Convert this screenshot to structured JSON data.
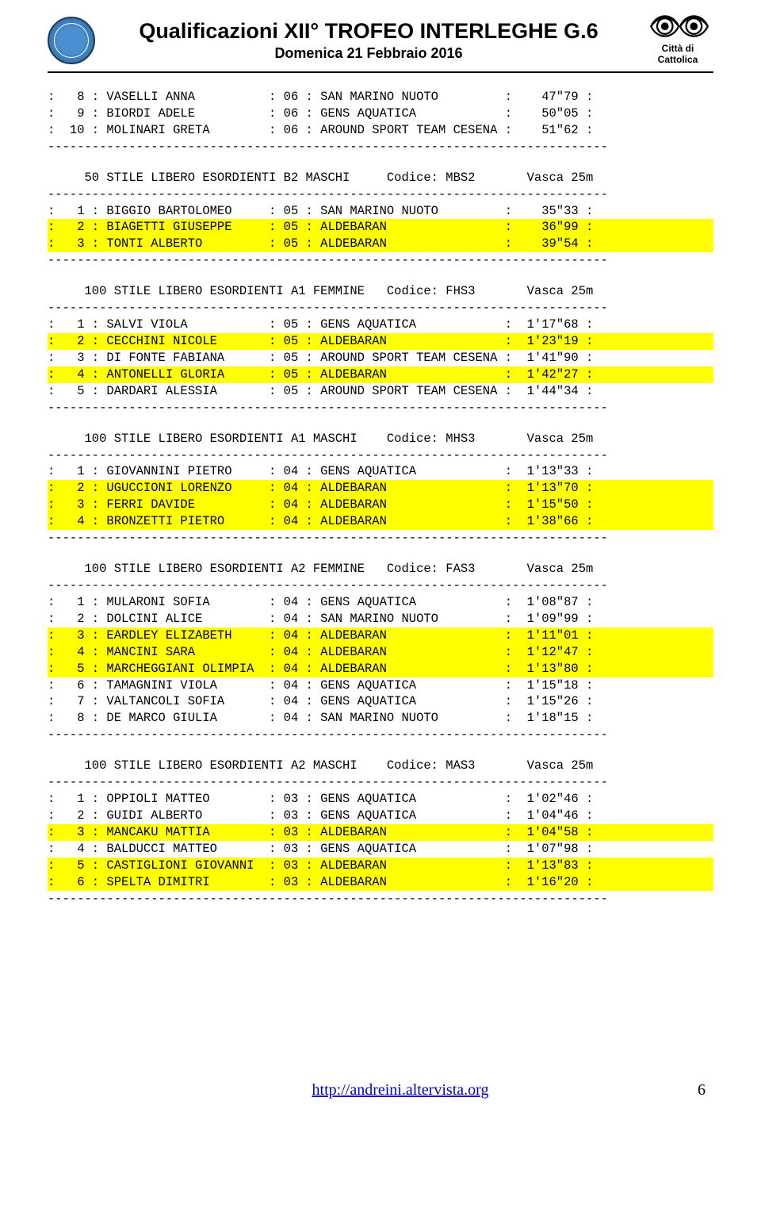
{
  "header": {
    "title_main": "Qualificazioni XII° TROFEO INTERLEGHE G.6",
    "title_sub": "Domenica 21 Febbraio 2016",
    "city_label": "Città di Cattolica"
  },
  "footer": {
    "link_text": "http://andreini.altervista.org",
    "page_num": "6"
  },
  "dashes": "----------------------------------------------------------------------------",
  "events": [
    {
      "header": null,
      "rows": [
        {
          "pos": "  8",
          "name": "VASELLI ANNA         ",
          "yr": "06",
          "team": "SAN MARINO NUOTO         ",
          "time": "   47\"79",
          "hl": false
        },
        {
          "pos": "  9",
          "name": "BIORDI ADELE         ",
          "yr": "06",
          "team": "GENS AQUATICA            ",
          "time": "   50\"05",
          "hl": false
        },
        {
          "pos": " 10",
          "name": "MOLINARI GRETA       ",
          "yr": "06",
          "team": "AROUND SPORT TEAM CESENA ",
          "time": "   51\"62",
          "hl": false
        }
      ]
    },
    {
      "header": "     50 STILE LIBERO ESORDIENTI B2 MASCHI     Codice: MBS2       Vasca 25m",
      "rows": [
        {
          "pos": "  1",
          "name": "BIGGIO BARTOLOMEO    ",
          "yr": "05",
          "team": "SAN MARINO NUOTO         ",
          "time": "   35\"33",
          "hl": false
        },
        {
          "pos": "  2",
          "name": "BIAGETTI GIUSEPPE    ",
          "yr": "05",
          "team": "ALDEBARAN                ",
          "time": "   36\"99",
          "hl": true
        },
        {
          "pos": "  3",
          "name": "TONTI ALBERTO        ",
          "yr": "05",
          "team": "ALDEBARAN                ",
          "time": "   39\"54",
          "hl": true
        }
      ]
    },
    {
      "header": "     100 STILE LIBERO ESORDIENTI A1 FEMMINE   Codice: FHS3       Vasca 25m",
      "rows": [
        {
          "pos": "  1",
          "name": "SALVI VIOLA          ",
          "yr": "05",
          "team": "GENS AQUATICA            ",
          "time": " 1'17\"68",
          "hl": false
        },
        {
          "pos": "  2",
          "name": "CECCHINI NICOLE      ",
          "yr": "05",
          "team": "ALDEBARAN                ",
          "time": " 1'23\"19",
          "hl": true
        },
        {
          "pos": "  3",
          "name": "DI FONTE FABIANA     ",
          "yr": "05",
          "team": "AROUND SPORT TEAM CESENA ",
          "time": " 1'41\"90",
          "hl": false
        },
        {
          "pos": "  4",
          "name": "ANTONELLI GLORIA     ",
          "yr": "05",
          "team": "ALDEBARAN                ",
          "time": " 1'42\"27",
          "hl": true
        },
        {
          "pos": "  5",
          "name": "DARDARI ALESSIA      ",
          "yr": "05",
          "team": "AROUND SPORT TEAM CESENA ",
          "time": " 1'44\"34",
          "hl": false
        }
      ]
    },
    {
      "header": "     100 STILE LIBERO ESORDIENTI A1 MASCHI    Codice: MHS3       Vasca 25m",
      "rows": [
        {
          "pos": "  1",
          "name": "GIOVANNINI PIETRO    ",
          "yr": "04",
          "team": "GENS AQUATICA            ",
          "time": " 1'13\"33",
          "hl": false
        },
        {
          "pos": "  2",
          "name": "UGUCCIONI LORENZO    ",
          "yr": "04",
          "team": "ALDEBARAN                ",
          "time": " 1'13\"70",
          "hl": true
        },
        {
          "pos": "  3",
          "name": "FERRI DAVIDE         ",
          "yr": "04",
          "team": "ALDEBARAN                ",
          "time": " 1'15\"50",
          "hl": true
        },
        {
          "pos": "  4",
          "name": "BRONZETTI PIETRO     ",
          "yr": "04",
          "team": "ALDEBARAN                ",
          "time": " 1'38\"66",
          "hl": true
        }
      ]
    },
    {
      "header": "     100 STILE LIBERO ESORDIENTI A2 FEMMINE   Codice: FAS3       Vasca 25m",
      "rows": [
        {
          "pos": "  1",
          "name": "MULARONI SOFIA       ",
          "yr": "04",
          "team": "GENS AQUATICA            ",
          "time": " 1'08\"87",
          "hl": false
        },
        {
          "pos": "  2",
          "name": "DOLCINI ALICE        ",
          "yr": "04",
          "team": "SAN MARINO NUOTO         ",
          "time": " 1'09\"99",
          "hl": false
        },
        {
          "pos": "  3",
          "name": "EARDLEY ELIZABETH    ",
          "yr": "04",
          "team": "ALDEBARAN                ",
          "time": " 1'11\"01",
          "hl": true
        },
        {
          "pos": "  4",
          "name": "MANCINI SARA         ",
          "yr": "04",
          "team": "ALDEBARAN                ",
          "time": " 1'12\"47",
          "hl": true
        },
        {
          "pos": "  5",
          "name": "MARCHEGGIANI OLIMPIA ",
          "yr": "04",
          "team": "ALDEBARAN                ",
          "time": " 1'13\"80",
          "hl": true
        },
        {
          "pos": "  6",
          "name": "TAMAGNINI VIOLA      ",
          "yr": "04",
          "team": "GENS AQUATICA            ",
          "time": " 1'15\"18",
          "hl": false
        },
        {
          "pos": "  7",
          "name": "VALTANCOLI SOFIA     ",
          "yr": "04",
          "team": "GENS AQUATICA            ",
          "time": " 1'15\"26",
          "hl": false
        },
        {
          "pos": "  8",
          "name": "DE MARCO GIULIA      ",
          "yr": "04",
          "team": "SAN MARINO NUOTO         ",
          "time": " 1'18\"15",
          "hl": false
        }
      ]
    },
    {
      "header": "     100 STILE LIBERO ESORDIENTI A2 MASCHI    Codice: MAS3       Vasca 25m",
      "rows": [
        {
          "pos": "  1",
          "name": "OPPIOLI MATTEO       ",
          "yr": "03",
          "team": "GENS AQUATICA            ",
          "time": " 1'02\"46",
          "hl": false
        },
        {
          "pos": "  2",
          "name": "GUIDI ALBERTO        ",
          "yr": "03",
          "team": "GENS AQUATICA            ",
          "time": " 1'04\"46",
          "hl": false
        },
        {
          "pos": "  3",
          "name": "MANCAKU MATTIA       ",
          "yr": "03",
          "team": "ALDEBARAN                ",
          "time": " 1'04\"58",
          "hl": true
        },
        {
          "pos": "  4",
          "name": "BALDUCCI MATTEO      ",
          "yr": "03",
          "team": "GENS AQUATICA            ",
          "time": " 1'07\"98",
          "hl": false
        },
        {
          "pos": "  5",
          "name": "CASTIGLIONI GIOVANNI ",
          "yr": "03",
          "team": "ALDEBARAN                ",
          "time": " 1'13\"83",
          "hl": true
        },
        {
          "pos": "  6",
          "name": "SPELTA DIMITRI       ",
          "yr": "03",
          "team": "ALDEBARAN                ",
          "time": " 1'16\"20",
          "hl": true
        }
      ]
    }
  ]
}
